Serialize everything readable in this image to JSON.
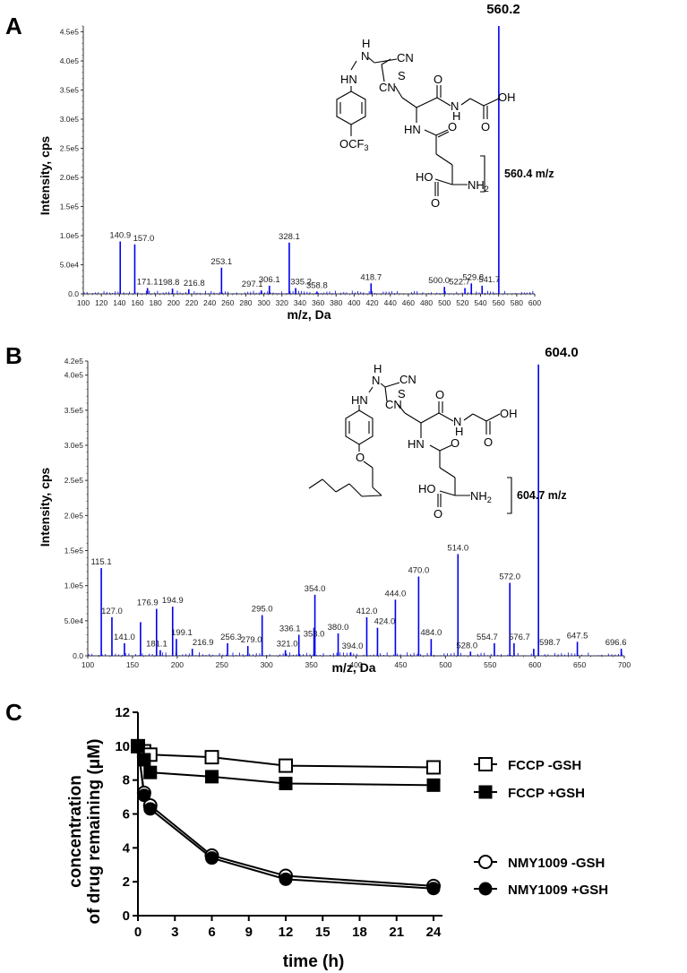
{
  "panels": {
    "A": {
      "letter": "A"
    },
    "B": {
      "letter": "B"
    },
    "C": {
      "letter": "C"
    }
  },
  "chart_data": [
    {
      "panel": "A",
      "type": "bar",
      "title": "",
      "xlabel": "m/z, Da",
      "ylabel": "Intensity, cps",
      "xlim": [
        100,
        600
      ],
      "ylim": [
        0,
        460000
      ],
      "x_ticks": [
        "100",
        "120",
        "140",
        "160",
        "180",
        "200",
        "220",
        "240",
        "260",
        "280",
        "300",
        "320",
        "340",
        "360",
        "380",
        "400",
        "420",
        "440",
        "460",
        "480",
        "500",
        "520",
        "540",
        "560",
        "580",
        "600"
      ],
      "y_ticks": [
        "0.0",
        "5.0e4",
        "1.0e5",
        "1.5e5",
        "2.0e5",
        "2.5e5",
        "3.0e5",
        "3.5e5",
        "4.0e5",
        "4.5e5"
      ],
      "peaks": [
        {
          "mz": 140.9,
          "intensity": 90000,
          "label": "140.9"
        },
        {
          "mz": 157.0,
          "intensity": 85000,
          "label": "157.0"
        },
        {
          "mz": 171.1,
          "intensity": 10000,
          "label": "171.1"
        },
        {
          "mz": 198.8,
          "intensity": 9000,
          "label": "198.8"
        },
        {
          "mz": 216.8,
          "intensity": 8000,
          "label": "216.8"
        },
        {
          "mz": 253.1,
          "intensity": 45000,
          "label": "253.1"
        },
        {
          "mz": 297.1,
          "intensity": 6000,
          "label": "297.1"
        },
        {
          "mz": 306.1,
          "intensity": 14000,
          "label": "306.1"
        },
        {
          "mz": 328.1,
          "intensity": 88000,
          "label": "328.1"
        },
        {
          "mz": 335.2,
          "intensity": 10000,
          "label": "335.2"
        },
        {
          "mz": 358.8,
          "intensity": 4000,
          "label": "358.8"
        },
        {
          "mz": 418.7,
          "intensity": 18000,
          "label": "418.7"
        },
        {
          "mz": 500.0,
          "intensity": 12000,
          "label": "500.0"
        },
        {
          "mz": 522.7,
          "intensity": 10000,
          "label": "522.7"
        },
        {
          "mz": 529.8,
          "intensity": 18000,
          "label": "529.8"
        },
        {
          "mz": 541.7,
          "intensity": 14000,
          "label": "541.7"
        },
        {
          "mz": 560.2,
          "intensity": 460000,
          "label": "560.2"
        }
      ],
      "annotation": {
        "base_peak": "560.2",
        "structure_mz": "560.4 m/z",
        "substituent": "OCF3"
      }
    },
    {
      "panel": "B",
      "type": "bar",
      "title": "",
      "xlabel": "m/z, Da",
      "ylabel": "Intensity, cps",
      "xlim": [
        100,
        700
      ],
      "ylim": [
        0,
        420000
      ],
      "x_ticks": [
        "100",
        "150",
        "200",
        "250",
        "300",
        "350",
        "400",
        "450",
        "500",
        "550",
        "600",
        "650",
        "700"
      ],
      "y_ticks": [
        "0.0",
        "5.0e4",
        "1.0e5",
        "1.5e5",
        "2.0e5",
        "2.5e5",
        "3.0e5",
        "3.5e5",
        "4.0e5",
        "4.2e5"
      ],
      "peaks": [
        {
          "mz": 115.1,
          "intensity": 125000,
          "label": "115.1"
        },
        {
          "mz": 127.0,
          "intensity": 55000,
          "label": "127.0"
        },
        {
          "mz": 141.0,
          "intensity": 18000,
          "label": "141.0"
        },
        {
          "mz": 159.0,
          "intensity": 48000,
          "label": ""
        },
        {
          "mz": 176.9,
          "intensity": 67000,
          "label": "176.9"
        },
        {
          "mz": 181.1,
          "intensity": 8000,
          "label": "181.1"
        },
        {
          "mz": 194.9,
          "intensity": 70000,
          "label": "194.9"
        },
        {
          "mz": 199.1,
          "intensity": 24000,
          "label": "199.1"
        },
        {
          "mz": 216.9,
          "intensity": 10000,
          "label": "216.9"
        },
        {
          "mz": 256.3,
          "intensity": 18000,
          "label": "256.3"
        },
        {
          "mz": 279.0,
          "intensity": 14000,
          "label": "279.0"
        },
        {
          "mz": 295.0,
          "intensity": 58000,
          "label": "295.0"
        },
        {
          "mz": 321.0,
          "intensity": 8000,
          "label": "321.0"
        },
        {
          "mz": 336.1,
          "intensity": 30000,
          "label": "336.1"
        },
        {
          "mz": 353.0,
          "intensity": 40000,
          "label": "353.0"
        },
        {
          "mz": 354.0,
          "intensity": 87000,
          "label": "354.0"
        },
        {
          "mz": 380.0,
          "intensity": 32000,
          "label": "380.0"
        },
        {
          "mz": 394.0,
          "intensity": 5000,
          "label": "394.0"
        },
        {
          "mz": 412.0,
          "intensity": 55000,
          "label": "412.0"
        },
        {
          "mz": 424.0,
          "intensity": 40000,
          "label": "424.0"
        },
        {
          "mz": 444.0,
          "intensity": 80000,
          "label": "444.0"
        },
        {
          "mz": 470.0,
          "intensity": 113000,
          "label": "470.0"
        },
        {
          "mz": 484.0,
          "intensity": 24000,
          "label": "484.0"
        },
        {
          "mz": 514.0,
          "intensity": 145000,
          "label": "514.0"
        },
        {
          "mz": 528.0,
          "intensity": 6000,
          "label": "528.0"
        },
        {
          "mz": 554.7,
          "intensity": 18000,
          "label": "554.7"
        },
        {
          "mz": 572.0,
          "intensity": 104000,
          "label": "572.0"
        },
        {
          "mz": 576.7,
          "intensity": 18000,
          "label": "576.7"
        },
        {
          "mz": 598.7,
          "intensity": 10000,
          "label": "598.7"
        },
        {
          "mz": 604.0,
          "intensity": 415000,
          "label": "604.0"
        },
        {
          "mz": 647.5,
          "intensity": 20000,
          "label": "647.5"
        },
        {
          "mz": 696.6,
          "intensity": 10000,
          "label": "696.6"
        }
      ],
      "annotation": {
        "base_peak": "604.0",
        "structure_mz": "604.7 m/z",
        "substituent": "O-hexyl"
      }
    },
    {
      "panel": "C",
      "type": "line",
      "title": "",
      "xlabel": "time (h)",
      "ylabel": "concentration of drug remaining (μM)",
      "xlim": [
        0,
        24
      ],
      "ylim": [
        0,
        12
      ],
      "x_ticks": [
        "0",
        "3",
        "6",
        "9",
        "12",
        "15",
        "18",
        "21",
        "24"
      ],
      "y_ticks": [
        "0",
        "2",
        "4",
        "6",
        "8",
        "10",
        "12"
      ],
      "legend_position": "right",
      "x": [
        0,
        0.5,
        1,
        6,
        12,
        24
      ],
      "series": [
        {
          "name": "FCCP -GSH",
          "marker": "open-square",
          "values": [
            10.0,
            9.7,
            9.5,
            9.35,
            8.85,
            8.75
          ]
        },
        {
          "name": "FCCP +GSH",
          "marker": "filled-square",
          "values": [
            10.0,
            9.2,
            8.45,
            8.2,
            7.8,
            7.7
          ]
        },
        {
          "name": "NMY1009 -GSH",
          "marker": "open-circle",
          "values": [
            10.0,
            7.25,
            6.5,
            3.55,
            2.35,
            1.75
          ]
        },
        {
          "name": "NMY1009 +GSH",
          "marker": "filled-circle",
          "values": [
            10.0,
            7.1,
            6.3,
            3.4,
            2.15,
            1.6
          ]
        }
      ]
    }
  ],
  "labels": {
    "A": {
      "ylabel": "Intensity, cps",
      "xlabel": "m/z, Da",
      "base_peak": "560.2",
      "structure_mz": "560.4 m/z",
      "chem": {
        "HN": "HN",
        "H": "H",
        "N": "N",
        "CN": "CN",
        "S": "S",
        "O": "O",
        "OH": "OH",
        "HO": "HO",
        "NH2": "NH",
        "sub2": "2",
        "OCF": "OCF",
        "sub3": "3"
      }
    },
    "B": {
      "ylabel": "Intensity, cps",
      "xlabel": "m/z, Da",
      "base_peak": "604.0",
      "structure_mz": "604.7 m/z",
      "chem": {
        "HN": "HN",
        "H": "H",
        "N": "N",
        "CN": "CN",
        "S": "S",
        "O": "O",
        "OH": "OH",
        "HO": "HO",
        "NH2": "NH",
        "sub2": "2"
      }
    },
    "C": {
      "ylabel_line1": "concentration",
      "ylabel_line2": "of drug remaining (μM)",
      "xlabel": "time (h)"
    }
  },
  "colors": {
    "spectrum": "#0000ee",
    "axis": "#333333",
    "black": "#000000"
  }
}
